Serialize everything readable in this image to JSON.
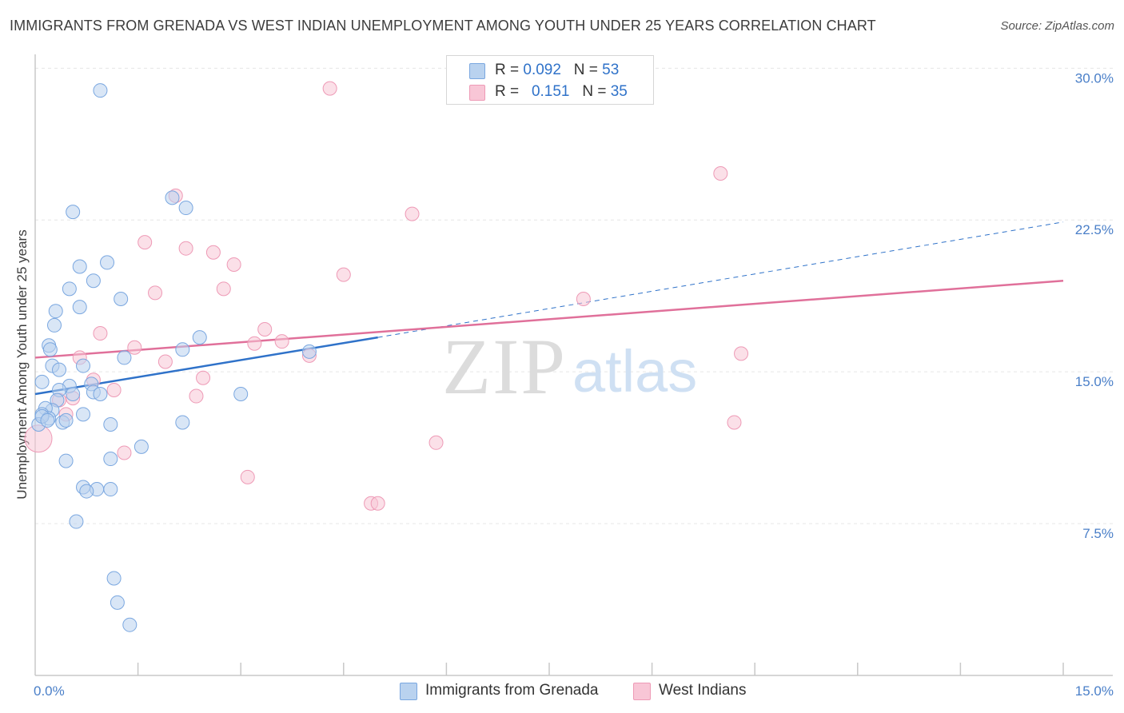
{
  "header": {
    "title": "IMMIGRANTS FROM GRENADA VS WEST INDIAN UNEMPLOYMENT AMONG YOUTH UNDER 25 YEARS CORRELATION CHART",
    "source": "Source: ZipAtlas.com"
  },
  "watermark": {
    "zip": "ZIP",
    "atlas": "atlas"
  },
  "colors": {
    "blue_fill": "#b9d2ef",
    "blue_stroke": "#7aa7e0",
    "blue_line": "#2f72c9",
    "pink_fill": "#f8c6d6",
    "pink_stroke": "#ee9ab6",
    "pink_line": "#e0709a",
    "grid": "#e6e6e6",
    "tick_label": "#4a7fc8"
  },
  "legend": {
    "rows": [
      {
        "r_label": "R = ",
        "r_value": "0.092",
        "n_label": "N = ",
        "n_value": "53"
      },
      {
        "r_label": "R = ",
        "r_value": "0.151",
        "n_label": "N = ",
        "n_value": "35"
      }
    ]
  },
  "bottom_legend": {
    "series1": "Immigrants from Grenada",
    "series2": "West Indians"
  },
  "chart_data": {
    "type": "scatter",
    "title": "IMMIGRANTS FROM GRENADA VS WEST INDIAN UNEMPLOYMENT AMONG YOUTH UNDER 25 YEARS CORRELATION CHART",
    "xlabel": "",
    "ylabel": "Unemployment Among Youth under 25 years",
    "xlim": [
      0,
      15
    ],
    "ylim": [
      0,
      31
    ],
    "x_tick_labels": [
      {
        "value": 0,
        "label": "0.0%"
      },
      {
        "value": 15,
        "label": "15.0%"
      }
    ],
    "y_ticks": [
      {
        "value": 7.5,
        "label": "7.5%"
      },
      {
        "value": 15,
        "label": "15.0%"
      },
      {
        "value": 22.5,
        "label": "22.5%"
      },
      {
        "value": 30,
        "label": "30.0%"
      }
    ],
    "grid": true,
    "legend_position": "top-center",
    "series": [
      {
        "name": "Immigrants from Grenada",
        "r": 0.092,
        "n": 53,
        "points": [
          [
            0.95,
            28.9
          ],
          [
            0.55,
            22.9
          ],
          [
            2.0,
            23.6
          ],
          [
            2.2,
            23.1
          ],
          [
            0.65,
            20.2
          ],
          [
            1.05,
            20.4
          ],
          [
            0.5,
            19.1
          ],
          [
            0.85,
            19.5
          ],
          [
            1.25,
            18.6
          ],
          [
            0.65,
            18.2
          ],
          [
            0.3,
            18.0
          ],
          [
            0.28,
            17.3
          ],
          [
            2.4,
            16.7
          ],
          [
            0.2,
            16.3
          ],
          [
            0.22,
            16.1
          ],
          [
            2.15,
            16.1
          ],
          [
            1.3,
            15.7
          ],
          [
            4.0,
            16.0
          ],
          [
            0.25,
            15.3
          ],
          [
            0.7,
            15.3
          ],
          [
            0.35,
            15.1
          ],
          [
            0.1,
            14.5
          ],
          [
            0.5,
            14.3
          ],
          [
            0.82,
            14.4
          ],
          [
            0.35,
            14.1
          ],
          [
            0.85,
            14.0
          ],
          [
            0.95,
            13.9
          ],
          [
            0.55,
            13.9
          ],
          [
            3.0,
            13.9
          ],
          [
            0.32,
            13.6
          ],
          [
            0.25,
            13.1
          ],
          [
            0.15,
            13.2
          ],
          [
            0.1,
            12.9
          ],
          [
            0.2,
            12.7
          ],
          [
            0.7,
            12.9
          ],
          [
            0.4,
            12.5
          ],
          [
            0.05,
            12.4
          ],
          [
            1.1,
            12.4
          ],
          [
            2.15,
            12.5
          ],
          [
            0.45,
            12.6
          ],
          [
            0.1,
            12.8
          ],
          [
            1.55,
            11.3
          ],
          [
            1.1,
            10.7
          ],
          [
            0.45,
            10.6
          ],
          [
            0.7,
            9.3
          ],
          [
            0.9,
            9.2
          ],
          [
            1.1,
            9.2
          ],
          [
            0.75,
            9.1
          ],
          [
            0.6,
            7.6
          ],
          [
            1.15,
            4.8
          ],
          [
            1.2,
            3.6
          ],
          [
            1.38,
            2.5
          ],
          [
            0.18,
            12.6
          ]
        ],
        "trend": {
          "x0": 0.0,
          "y0": 13.9,
          "x1": 5.0,
          "y1": 16.7,
          "x_dash_end": 15.0,
          "y_dash_end": 22.4
        }
      },
      {
        "name": "West Indians",
        "r": 0.151,
        "n": 35,
        "points": [
          [
            4.3,
            29.0
          ],
          [
            10.0,
            24.8
          ],
          [
            2.05,
            23.7
          ],
          [
            5.5,
            22.8
          ],
          [
            1.6,
            21.4
          ],
          [
            2.2,
            21.1
          ],
          [
            2.6,
            20.9
          ],
          [
            2.9,
            20.3
          ],
          [
            4.5,
            19.8
          ],
          [
            1.75,
            18.9
          ],
          [
            2.75,
            19.1
          ],
          [
            8.0,
            18.6
          ],
          [
            3.35,
            17.1
          ],
          [
            0.95,
            16.9
          ],
          [
            3.6,
            16.5
          ],
          [
            3.2,
            16.4
          ],
          [
            1.45,
            16.2
          ],
          [
            10.3,
            15.9
          ],
          [
            0.65,
            15.7
          ],
          [
            4.0,
            15.8
          ],
          [
            1.9,
            15.5
          ],
          [
            0.85,
            14.6
          ],
          [
            2.45,
            14.7
          ],
          [
            1.15,
            14.1
          ],
          [
            2.35,
            13.8
          ],
          [
            0.55,
            13.7
          ],
          [
            0.35,
            13.6
          ],
          [
            0.45,
            12.9
          ],
          [
            10.2,
            12.5
          ],
          [
            5.85,
            11.5
          ],
          [
            1.3,
            11.0
          ],
          [
            3.1,
            9.8
          ],
          [
            4.9,
            8.5
          ],
          [
            5.0,
            8.5
          ],
          [
            0.0,
            11.7
          ]
        ],
        "trend": {
          "x0": 0.0,
          "y0": 15.7,
          "x1": 15.0,
          "y1": 19.5
        }
      }
    ]
  }
}
